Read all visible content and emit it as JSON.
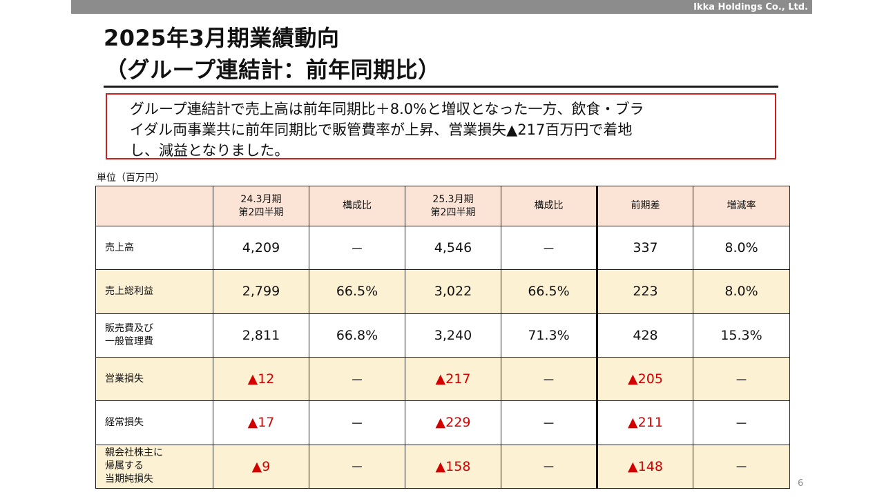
{
  "company": "Ikka Holdings Co., Ltd.",
  "title": {
    "line1": "2025年3月期業績動向",
    "line2": "（グループ連結計：前年同期比）"
  },
  "summary": {
    "line1": "グループ連結計で売上高は前年同期比＋8.0%と増収となった一方、飲食・ブラ",
    "line2": "イダル両事業共に前年同期比で販管費率が上昇、営業損失▲217百万円で着地",
    "line3": "し、減益となりました。"
  },
  "unit_label": "単位（百万円）",
  "table": {
    "headers": [
      {
        "line1": "",
        "line2": ""
      },
      {
        "line1": "24.3月期",
        "line2": "第2四半期"
      },
      {
        "line1": "構成比",
        "line2": ""
      },
      {
        "line1": "25.3月期",
        "line2": "第2四半期"
      },
      {
        "line1": "構成比",
        "line2": ""
      },
      {
        "line1": "前期差",
        "line2": ""
      },
      {
        "line1": "増減率",
        "line2": ""
      }
    ],
    "rows": [
      {
        "label1": "売上高",
        "label2": "",
        "label3": "",
        "cells": [
          "4,209",
          "－",
          "4,546",
          "－",
          "337",
          "8.0%"
        ]
      },
      {
        "label1": "売上総利益",
        "label2": "",
        "label3": "",
        "cells": [
          "2,799",
          "66.5%",
          "3,022",
          "66.5%",
          "223",
          "8.0%"
        ]
      },
      {
        "label1": "販売費及び",
        "label2": "一般管理費",
        "label3": "",
        "cells": [
          "2,811",
          "66.8%",
          "3,240",
          "71.3%",
          "428",
          "15.3%"
        ]
      },
      {
        "label1": "営業損失",
        "label2": "",
        "label3": "",
        "cells": [
          "▲12",
          "－",
          "▲217",
          "－",
          "▲205",
          "－"
        ]
      },
      {
        "label1": "経常損失",
        "label2": "",
        "label3": "",
        "cells": [
          "▲17",
          "－",
          "▲229",
          "－",
          "▲211",
          "－"
        ]
      },
      {
        "label1": "親会社株主に",
        "label2": "帰属する",
        "label3": "当期純損失",
        "cells": [
          "▲9",
          "－",
          "▲158",
          "－",
          "▲148",
          "－"
        ]
      }
    ]
  },
  "page_number": "6",
  "colors": {
    "header_fill": "#fbe4d5",
    "beige_row_fill": "#fdf1d4",
    "negative_text": "#d40000",
    "box_border": "#cc1f1f",
    "top_bar": "#8c8c8c"
  }
}
